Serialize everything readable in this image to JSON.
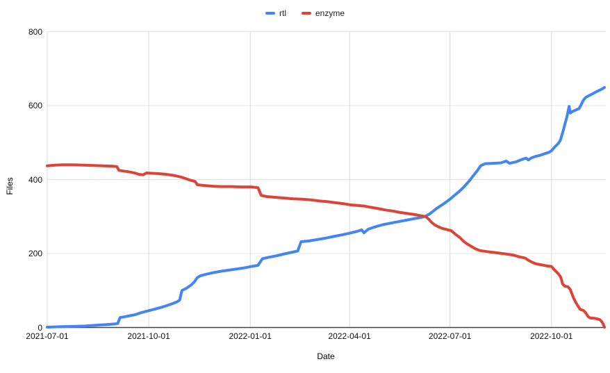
{
  "chart_data": {
    "type": "line",
    "title": "",
    "xlabel": "Date",
    "ylabel": "Files",
    "x_ticks": [
      "2021-07-01",
      "2021-10-01",
      "2022-01-01",
      "2022-04-01",
      "2022-07-01",
      "2022-10-01"
    ],
    "y_ticks": [
      0,
      200,
      400,
      600,
      800
    ],
    "ylim": [
      0,
      800
    ],
    "xlim": [
      "2021-07-01",
      "2022-11-18"
    ],
    "grid": true,
    "legend_position": "top-center",
    "background_color": "#ffffff",
    "axis_color": "#424242",
    "h_grid_color": "#e6e6e6",
    "v_grid_color": "#d9d9d9",
    "series": [
      {
        "name": "rtl",
        "color": "#4285f4",
        "points": [
          [
            "2021-07-01",
            1
          ],
          [
            "2021-07-12",
            2
          ],
          [
            "2021-07-24",
            3
          ],
          [
            "2021-08-04",
            4
          ],
          [
            "2021-08-14",
            6
          ],
          [
            "2021-08-24",
            8
          ],
          [
            "2021-09-01",
            10
          ],
          [
            "2021-09-03",
            11
          ],
          [
            "2021-09-05",
            27
          ],
          [
            "2021-09-09",
            29
          ],
          [
            "2021-09-14",
            32
          ],
          [
            "2021-09-19",
            35
          ],
          [
            "2021-09-24",
            40
          ],
          [
            "2021-09-29",
            44
          ],
          [
            "2021-10-03",
            47
          ],
          [
            "2021-10-08",
            51
          ],
          [
            "2021-10-13",
            55
          ],
          [
            "2021-10-18",
            60
          ],
          [
            "2021-10-23",
            65
          ],
          [
            "2021-10-27",
            70
          ],
          [
            "2021-10-29",
            74
          ],
          [
            "2021-10-31",
            100
          ],
          [
            "2021-11-04",
            106
          ],
          [
            "2021-11-08",
            114
          ],
          [
            "2021-11-11",
            122
          ],
          [
            "2021-11-14",
            135
          ],
          [
            "2021-11-17",
            140
          ],
          [
            "2021-11-22",
            144
          ],
          [
            "2021-11-28",
            148
          ],
          [
            "2021-12-05",
            152
          ],
          [
            "2021-12-12",
            155
          ],
          [
            "2021-12-19",
            158
          ],
          [
            "2021-12-26",
            161
          ],
          [
            "2022-01-02",
            165
          ],
          [
            "2022-01-08",
            168
          ],
          [
            "2022-01-12",
            186
          ],
          [
            "2022-01-18",
            190
          ],
          [
            "2022-01-25",
            194
          ],
          [
            "2022-02-01",
            199
          ],
          [
            "2022-02-07",
            203
          ],
          [
            "2022-02-13",
            207
          ],
          [
            "2022-02-16",
            232
          ],
          [
            "2022-02-23",
            234
          ],
          [
            "2022-03-03",
            238
          ],
          [
            "2022-03-11",
            242
          ],
          [
            "2022-03-19",
            247
          ],
          [
            "2022-03-26",
            251
          ],
          [
            "2022-04-01",
            255
          ],
          [
            "2022-04-08",
            260
          ],
          [
            "2022-04-12",
            264
          ],
          [
            "2022-04-14",
            256
          ],
          [
            "2022-04-18",
            266
          ],
          [
            "2022-04-24",
            272
          ],
          [
            "2022-05-01",
            278
          ],
          [
            "2022-05-08",
            282
          ],
          [
            "2022-05-15",
            286
          ],
          [
            "2022-05-22",
            290
          ],
          [
            "2022-05-29",
            294
          ],
          [
            "2022-06-04",
            297
          ],
          [
            "2022-06-08",
            300
          ],
          [
            "2022-06-12",
            306
          ],
          [
            "2022-06-16",
            315
          ],
          [
            "2022-06-19",
            322
          ],
          [
            "2022-06-23",
            330
          ],
          [
            "2022-06-27",
            338
          ],
          [
            "2022-07-01",
            347
          ],
          [
            "2022-07-05",
            357
          ],
          [
            "2022-07-09",
            367
          ],
          [
            "2022-07-13",
            378
          ],
          [
            "2022-07-16",
            388
          ],
          [
            "2022-07-19",
            398
          ],
          [
            "2022-07-22",
            410
          ],
          [
            "2022-07-26",
            425
          ],
          [
            "2022-07-29",
            438
          ],
          [
            "2022-08-02",
            443
          ],
          [
            "2022-08-09",
            444
          ],
          [
            "2022-08-16",
            445
          ],
          [
            "2022-08-21",
            450
          ],
          [
            "2022-08-24",
            444
          ],
          [
            "2022-08-30",
            448
          ],
          [
            "2022-09-04",
            454
          ],
          [
            "2022-09-08",
            458
          ],
          [
            "2022-09-10",
            453
          ],
          [
            "2022-09-13",
            459
          ],
          [
            "2022-09-17",
            463
          ],
          [
            "2022-09-21",
            466
          ],
          [
            "2022-09-25",
            470
          ],
          [
            "2022-09-29",
            474
          ],
          [
            "2022-10-01",
            478
          ],
          [
            "2022-10-04",
            488
          ],
          [
            "2022-10-07",
            497
          ],
          [
            "2022-10-09",
            506
          ],
          [
            "2022-10-11",
            526
          ],
          [
            "2022-10-13",
            548
          ],
          [
            "2022-10-15",
            570
          ],
          [
            "2022-10-17",
            598
          ],
          [
            "2022-10-18",
            580
          ],
          [
            "2022-10-20",
            584
          ],
          [
            "2022-10-23",
            588
          ],
          [
            "2022-10-26",
            592
          ],
          [
            "2022-10-28",
            603
          ],
          [
            "2022-10-30",
            615
          ],
          [
            "2022-11-01",
            622
          ],
          [
            "2022-11-04",
            627
          ],
          [
            "2022-11-08",
            633
          ],
          [
            "2022-11-11",
            638
          ],
          [
            "2022-11-14",
            642
          ],
          [
            "2022-11-16",
            645
          ],
          [
            "2022-11-18",
            649
          ]
        ]
      },
      {
        "name": "enzyme",
        "color": "#db4437",
        "points": [
          [
            "2021-07-01",
            437
          ],
          [
            "2021-07-08",
            439
          ],
          [
            "2021-07-15",
            440
          ],
          [
            "2021-07-25",
            440
          ],
          [
            "2021-08-03",
            439
          ],
          [
            "2021-08-12",
            438
          ],
          [
            "2021-08-21",
            437
          ],
          [
            "2021-08-29",
            436
          ],
          [
            "2021-09-02",
            435
          ],
          [
            "2021-09-04",
            425
          ],
          [
            "2021-09-08",
            423
          ],
          [
            "2021-09-13",
            421
          ],
          [
            "2021-09-18",
            418
          ],
          [
            "2021-09-22",
            414
          ],
          [
            "2021-09-26",
            413
          ],
          [
            "2021-09-29",
            418
          ],
          [
            "2021-10-03",
            417
          ],
          [
            "2021-10-10",
            416
          ],
          [
            "2021-10-17",
            414
          ],
          [
            "2021-10-24",
            411
          ],
          [
            "2021-10-30",
            407
          ],
          [
            "2021-11-04",
            402
          ],
          [
            "2021-11-08",
            398
          ],
          [
            "2021-11-12",
            395
          ],
          [
            "2021-11-14",
            386
          ],
          [
            "2021-11-20",
            384
          ],
          [
            "2021-11-28",
            382
          ],
          [
            "2021-12-06",
            381
          ],
          [
            "2021-12-15",
            381
          ],
          [
            "2021-12-24",
            380
          ],
          [
            "2022-01-02",
            380
          ],
          [
            "2022-01-08",
            378
          ],
          [
            "2022-01-11",
            357
          ],
          [
            "2022-01-16",
            354
          ],
          [
            "2022-01-24",
            352
          ],
          [
            "2022-02-01",
            350
          ],
          [
            "2022-02-09",
            348
          ],
          [
            "2022-02-17",
            347
          ],
          [
            "2022-02-25",
            345
          ],
          [
            "2022-03-05",
            342
          ],
          [
            "2022-03-13",
            340
          ],
          [
            "2022-03-20",
            337
          ],
          [
            "2022-03-26",
            335
          ],
          [
            "2022-04-01",
            332
          ],
          [
            "2022-04-08",
            330
          ],
          [
            "2022-04-15",
            328
          ],
          [
            "2022-04-20",
            325
          ],
          [
            "2022-04-26",
            322
          ],
          [
            "2022-05-03",
            318
          ],
          [
            "2022-05-10",
            315
          ],
          [
            "2022-05-17",
            311
          ],
          [
            "2022-05-24",
            308
          ],
          [
            "2022-05-31",
            305
          ],
          [
            "2022-06-05",
            302
          ],
          [
            "2022-06-09",
            300
          ],
          [
            "2022-06-12",
            292
          ],
          [
            "2022-06-14",
            285
          ],
          [
            "2022-06-17",
            278
          ],
          [
            "2022-06-20",
            273
          ],
          [
            "2022-06-24",
            268
          ],
          [
            "2022-06-28",
            265
          ],
          [
            "2022-07-02",
            262
          ],
          [
            "2022-07-06",
            252
          ],
          [
            "2022-07-10",
            243
          ],
          [
            "2022-07-13",
            234
          ],
          [
            "2022-07-16",
            227
          ],
          [
            "2022-07-20",
            220
          ],
          [
            "2022-07-24",
            213
          ],
          [
            "2022-07-28",
            208
          ],
          [
            "2022-08-04",
            205
          ],
          [
            "2022-08-12",
            202
          ],
          [
            "2022-08-20",
            199
          ],
          [
            "2022-08-27",
            196
          ],
          [
            "2022-09-02",
            191
          ],
          [
            "2022-09-07",
            188
          ],
          [
            "2022-09-10",
            182
          ],
          [
            "2022-09-13",
            177
          ],
          [
            "2022-09-17",
            172
          ],
          [
            "2022-09-21",
            170
          ],
          [
            "2022-09-26",
            167
          ],
          [
            "2022-10-01",
            165
          ],
          [
            "2022-10-03",
            158
          ],
          [
            "2022-10-05",
            152
          ],
          [
            "2022-10-07",
            146
          ],
          [
            "2022-10-09",
            138
          ],
          [
            "2022-10-10",
            130
          ],
          [
            "2022-10-11",
            118
          ],
          [
            "2022-10-13",
            112
          ],
          [
            "2022-10-16",
            110
          ],
          [
            "2022-10-18",
            103
          ],
          [
            "2022-10-19",
            95
          ],
          [
            "2022-10-21",
            80
          ],
          [
            "2022-10-23",
            68
          ],
          [
            "2022-10-25",
            58
          ],
          [
            "2022-10-27",
            49
          ],
          [
            "2022-10-30",
            46
          ],
          [
            "2022-11-01",
            40
          ],
          [
            "2022-11-03",
            30
          ],
          [
            "2022-11-05",
            26
          ],
          [
            "2022-11-09",
            25
          ],
          [
            "2022-11-12",
            23
          ],
          [
            "2022-11-14",
            21
          ],
          [
            "2022-11-16",
            14
          ],
          [
            "2022-11-17",
            8
          ],
          [
            "2022-11-18",
            1
          ]
        ]
      }
    ]
  }
}
